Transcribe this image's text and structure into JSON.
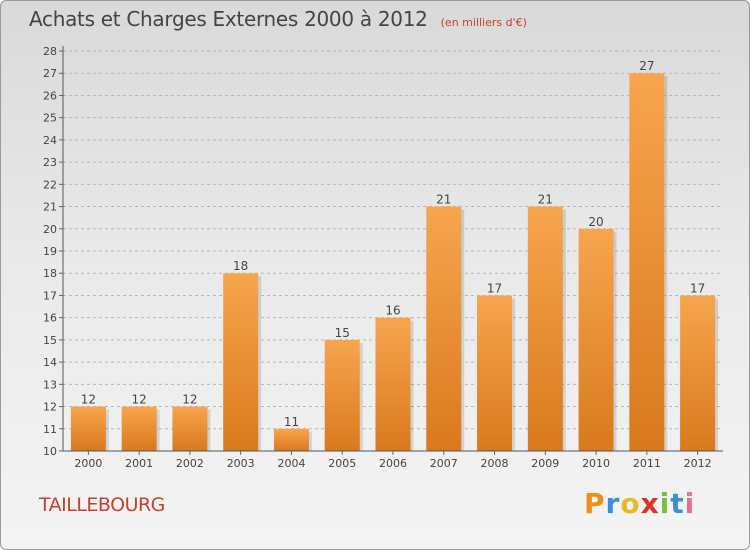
{
  "title": "Achats et Charges Externes 2000 à 2012",
  "subtitle": "(en milliers d'€)",
  "town": "TAILLEBOURG",
  "brand": {
    "letters": [
      "P",
      "r",
      "o",
      "x",
      "i",
      "t",
      "i"
    ],
    "colors": [
      "#f08c1c",
      "#3a8fd8",
      "#e8b92a",
      "#d9332a",
      "#79c13a",
      "#3a8fd8",
      "#e86d9a"
    ]
  },
  "colors": {
    "bar_light": "#f7a54e",
    "bar_dark": "#d9791e",
    "grid": "#b5b5b5",
    "text": "#444444",
    "accent": "#c8402a"
  },
  "chart_data": {
    "type": "bar",
    "title": "Achats et Charges Externes 2000 à 2012",
    "subtitle": "(en milliers d'€)",
    "categories": [
      "2000",
      "2001",
      "2002",
      "2003",
      "2004",
      "2005",
      "2006",
      "2007",
      "2008",
      "2009",
      "2010",
      "2011",
      "2012"
    ],
    "values": [
      12,
      12,
      12,
      18,
      11,
      15,
      16,
      21,
      17,
      21,
      20,
      27,
      17
    ],
    "ylim": [
      10,
      28
    ],
    "yticks": [
      10,
      11,
      12,
      13,
      14,
      15,
      16,
      17,
      18,
      19,
      20,
      21,
      22,
      23,
      24,
      25,
      26,
      27,
      28
    ],
    "grid": true,
    "data_labels": true
  }
}
